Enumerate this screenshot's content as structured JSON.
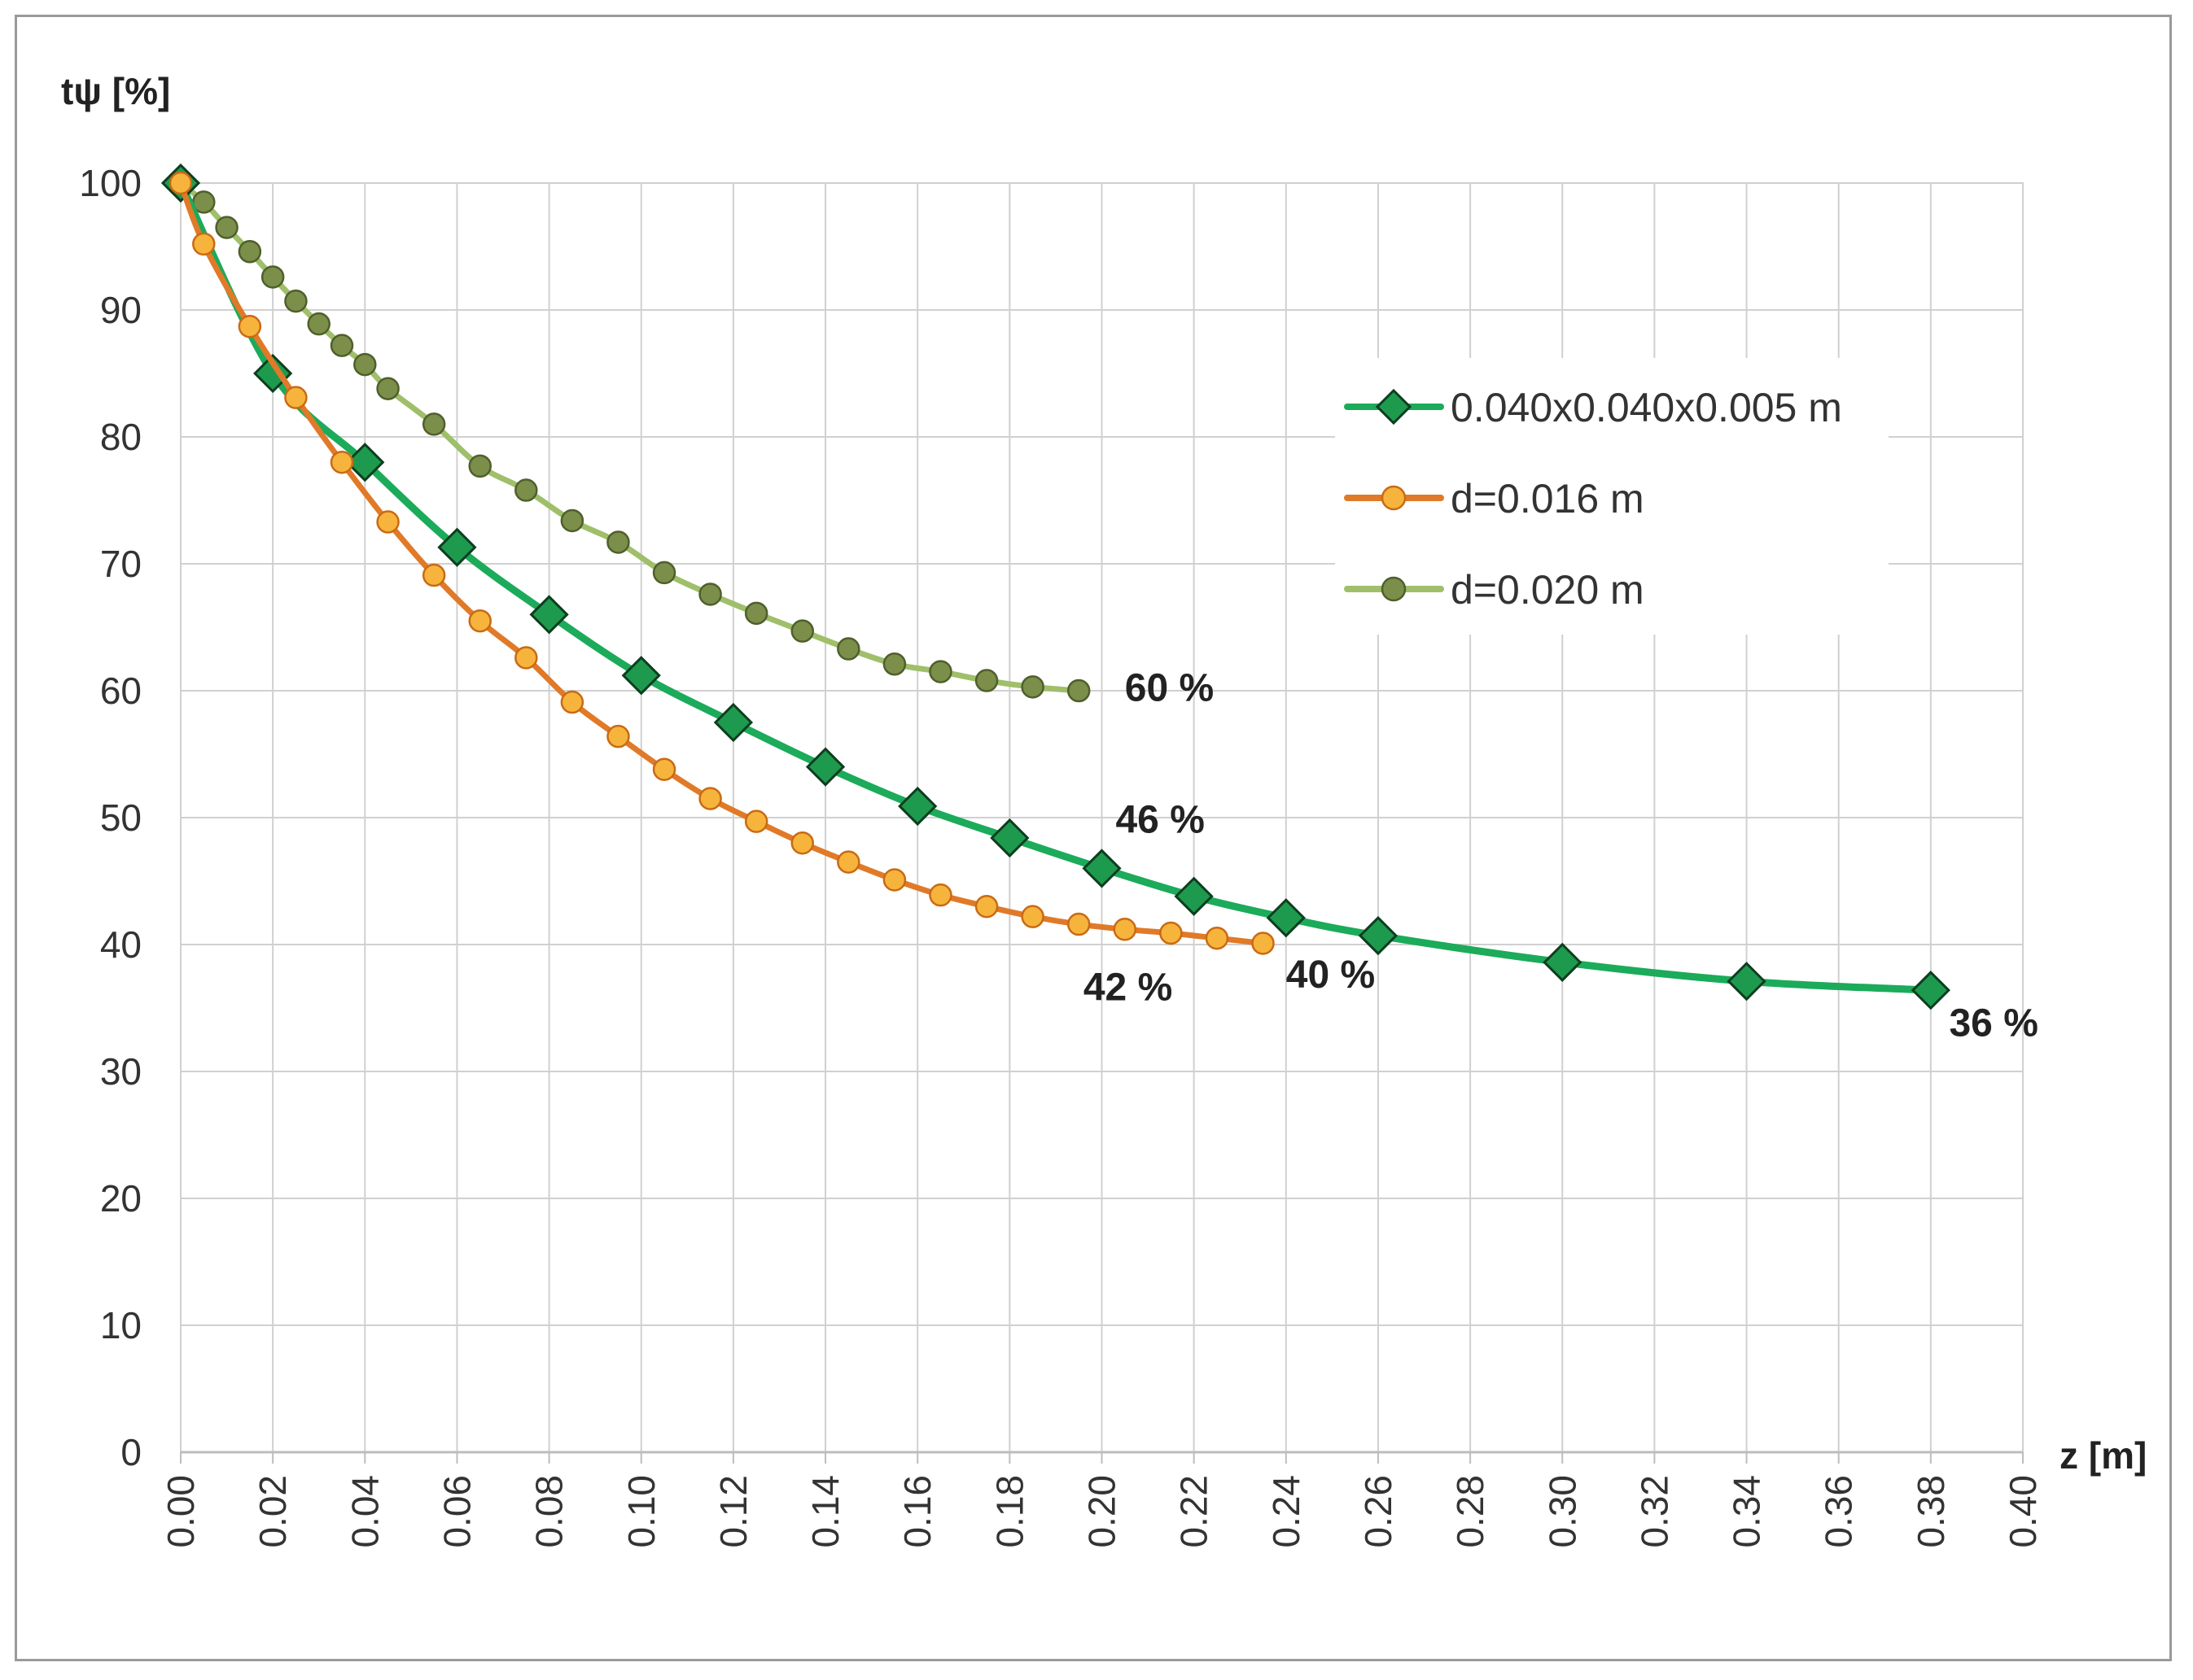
{
  "chart_data": {
    "type": "line",
    "ylabel": "tψ [%]",
    "xlabel": "z [m]",
    "xlim": [
      0,
      0.4
    ],
    "ylim": [
      0,
      100
    ],
    "x_ticks": [
      "0.00",
      "0.02",
      "0.04",
      "0.06",
      "0.08",
      "0.10",
      "0.12",
      "0.14",
      "0.16",
      "0.18",
      "0.20",
      "0.22",
      "0.24",
      "0.26",
      "0.28",
      "0.30",
      "0.32",
      "0.34",
      "0.36",
      "0.38",
      "0.40"
    ],
    "y_ticks": [
      "0",
      "10",
      "20",
      "30",
      "40",
      "50",
      "60",
      "70",
      "80",
      "90",
      "100"
    ],
    "grid": true,
    "legend_position": "top-right",
    "series": [
      {
        "name": "0.040x0.040x0.005 m",
        "color": "#1bab5a",
        "marker_fill": "#1e9a4e",
        "marker": "diamond",
        "x": [
          0.0,
          0.02,
          0.04,
          0.06,
          0.08,
          0.1,
          0.12,
          0.14,
          0.16,
          0.18,
          0.2,
          0.22,
          0.24,
          0.26,
          0.3,
          0.34,
          0.38
        ],
        "y": [
          100,
          85,
          78,
          71.3,
          66,
          61.2,
          57.5,
          54,
          50.9,
          48.4,
          46,
          43.8,
          42.1,
          40.7,
          38.6,
          37.1,
          36.4
        ]
      },
      {
        "name": "d=0.016 m",
        "color": "#e07a28",
        "marker_fill": "#f6b43c",
        "marker": "circle",
        "x": [
          0.0,
          0.005,
          0.015,
          0.025,
          0.035,
          0.045,
          0.055,
          0.065,
          0.075,
          0.085,
          0.095,
          0.105,
          0.115,
          0.125,
          0.135,
          0.145,
          0.155,
          0.165,
          0.175,
          0.185,
          0.195,
          0.205,
          0.215,
          0.225,
          0.235
        ],
        "y": [
          100,
          95.2,
          88.7,
          83.1,
          78,
          73.3,
          69.1,
          65.5,
          62.6,
          59.1,
          56.4,
          53.8,
          51.5,
          49.7,
          48,
          46.5,
          45.1,
          43.9,
          43,
          42.2,
          41.6,
          41.2,
          40.9,
          40.5,
          40.1
        ]
      },
      {
        "name": "d=0.020 m",
        "color": "#9fbf6a",
        "marker_fill": "#7c8f4a",
        "marker": "circle",
        "x": [
          0.0,
          0.005,
          0.01,
          0.015,
          0.02,
          0.025,
          0.03,
          0.035,
          0.04,
          0.045,
          0.055,
          0.065,
          0.075,
          0.085,
          0.095,
          0.105,
          0.115,
          0.125,
          0.135,
          0.145,
          0.155,
          0.165,
          0.175,
          0.185,
          0.195
        ],
        "y": [
          100,
          98.5,
          96.5,
          94.6,
          92.6,
          90.7,
          88.9,
          87.2,
          85.7,
          83.8,
          81,
          77.7,
          75.8,
          73.4,
          71.7,
          69.3,
          67.6,
          66.1,
          64.7,
          63.3,
          62.1,
          61.5,
          60.8,
          60.3,
          60
        ]
      }
    ],
    "annotations": [
      {
        "text": "60 %",
        "x": 0.205,
        "y": 59.2
      },
      {
        "text": "46 %",
        "x": 0.203,
        "y": 48.8
      },
      {
        "text": "42 %",
        "x": 0.196,
        "y": 35.6
      },
      {
        "text": "40 %",
        "x": 0.24,
        "y": 36.6
      },
      {
        "text": "36 %",
        "x": 0.384,
        "y": 32.8
      }
    ]
  }
}
